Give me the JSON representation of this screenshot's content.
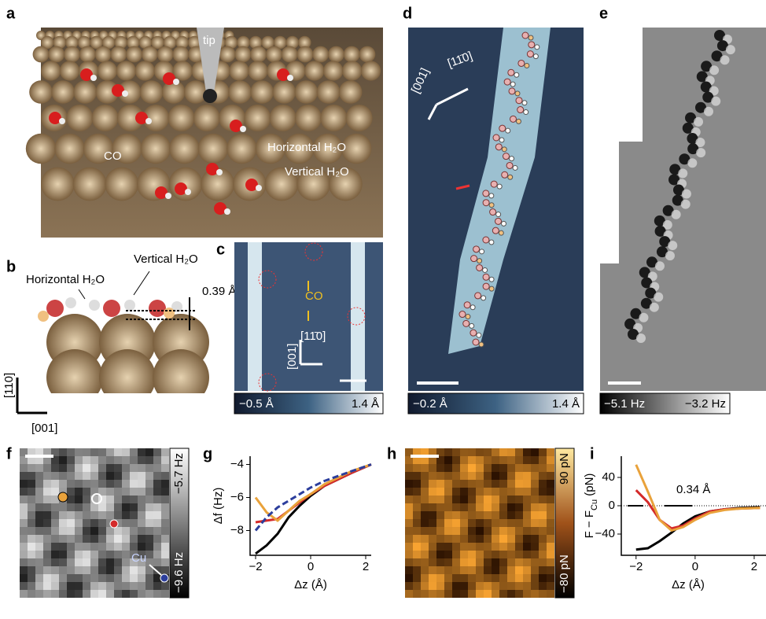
{
  "panel_labels": [
    "a",
    "b",
    "c",
    "d",
    "e",
    "f",
    "g",
    "h",
    "i"
  ],
  "a": {
    "tip": "tip",
    "co": "CO",
    "horizontal": "Horizontal H₂O",
    "vertical": "Vertical H₂O"
  },
  "b": {
    "vertical": "Vertical H₂O",
    "horizontal": "Horizontal H₂O",
    "height": "0.39 Å",
    "axis_110": "[110]",
    "axis_001": "[001]"
  },
  "c": {
    "co": "CO",
    "axis_1_10": "[11̄0]",
    "axis_001": "[001]",
    "colorbar": [
      "−0.5 Å",
      "1.4 Å"
    ]
  },
  "d": {
    "axis_001": "[001]",
    "axis_1_10": "[11̄0]",
    "colorbar": [
      "−0.2 Å",
      "1.4 Å"
    ]
  },
  "e": {
    "colorbar": [
      "−5.1 Hz",
      "−3.2 Hz"
    ]
  },
  "f": {
    "cu": "Cu",
    "colorbar": [
      "−5.7 Hz",
      "−9.6 Hz"
    ]
  },
  "h": {
    "colorbar": [
      "90 pN",
      "−80 pN"
    ]
  },
  "chart_data": [
    {
      "type": "line",
      "xlabel": "Δz (Å)",
      "ylabel": [
        "Δf (Hz)"
      ],
      "x": [
        -2,
        -1.6,
        -1.2,
        -0.8,
        -0.4,
        0,
        0.5,
        1,
        1.5,
        2.2
      ],
      "xlim": [
        -2.2,
        2.2
      ],
      "ylim": [
        -9.5,
        -3.5
      ],
      "xticks": [
        {
          "value": -2,
          "label": "−2"
        },
        0,
        2
      ],
      "yticks": [
        {
          "value": -4,
          "label": "−4"
        },
        {
          "value": -6,
          "label": "−6"
        },
        {
          "value": -8,
          "label": "−8"
        }
      ],
      "series": [
        {
          "color": "#000000",
          "values": [
            -9.4,
            -8.9,
            -8.2,
            -7.2,
            -6.5,
            -5.9,
            -5.3,
            -4.9,
            -4.5,
            -4.0
          ]
        },
        {
          "color": "#d42a2a",
          "values": [
            -7.5,
            -7.4,
            -7.3,
            -6.8,
            -6.3,
            -5.8,
            -5.3,
            -4.9,
            -4.5,
            -4.0
          ]
        },
        {
          "color": "#e9a23b",
          "values": [
            -6.0,
            -6.9,
            -7.4,
            -6.8,
            -6.2,
            -5.8,
            -5.2,
            -4.8,
            -4.4,
            -4.0
          ]
        },
        {
          "color": "#2c3e9c",
          "dashed": true,
          "values": [
            -8.0,
            -7.2,
            -6.6,
            -6.2,
            -5.8,
            -5.4,
            -5.0,
            -4.7,
            -4.4,
            -4.0
          ]
        }
      ]
    },
    {
      "type": "line",
      "xlabel": "Δz (Å)",
      "ylabel": [
        "F − F",
        "Cu",
        " (pN)"
      ],
      "annotation": "0.34 Å",
      "x": [
        -2,
        -1.6,
        -1.2,
        -0.8,
        -0.4,
        0,
        0.5,
        1,
        1.5,
        2.2
      ],
      "xlim": [
        -2.5,
        2.4
      ],
      "ylim": [
        -70,
        70
      ],
      "xticks": [
        {
          "value": -2,
          "label": "−2"
        },
        0,
        2
      ],
      "yticks": [
        40,
        0,
        {
          "value": -40,
          "label": "−40"
        }
      ],
      "series": [
        {
          "color": "#000000",
          "values": [
            -62,
            -60,
            -50,
            -38,
            -25,
            -15,
            -8,
            -5,
            -3,
            -2
          ]
        },
        {
          "color": "#d42a2a",
          "values": [
            22,
            5,
            -20,
            -32,
            -28,
            -18,
            -8,
            -5,
            -4,
            -3
          ]
        },
        {
          "color": "#e9a23b",
          "values": [
            58,
            20,
            -20,
            -35,
            -30,
            -20,
            -10,
            -6,
            -4,
            -3
          ]
        }
      ]
    }
  ]
}
